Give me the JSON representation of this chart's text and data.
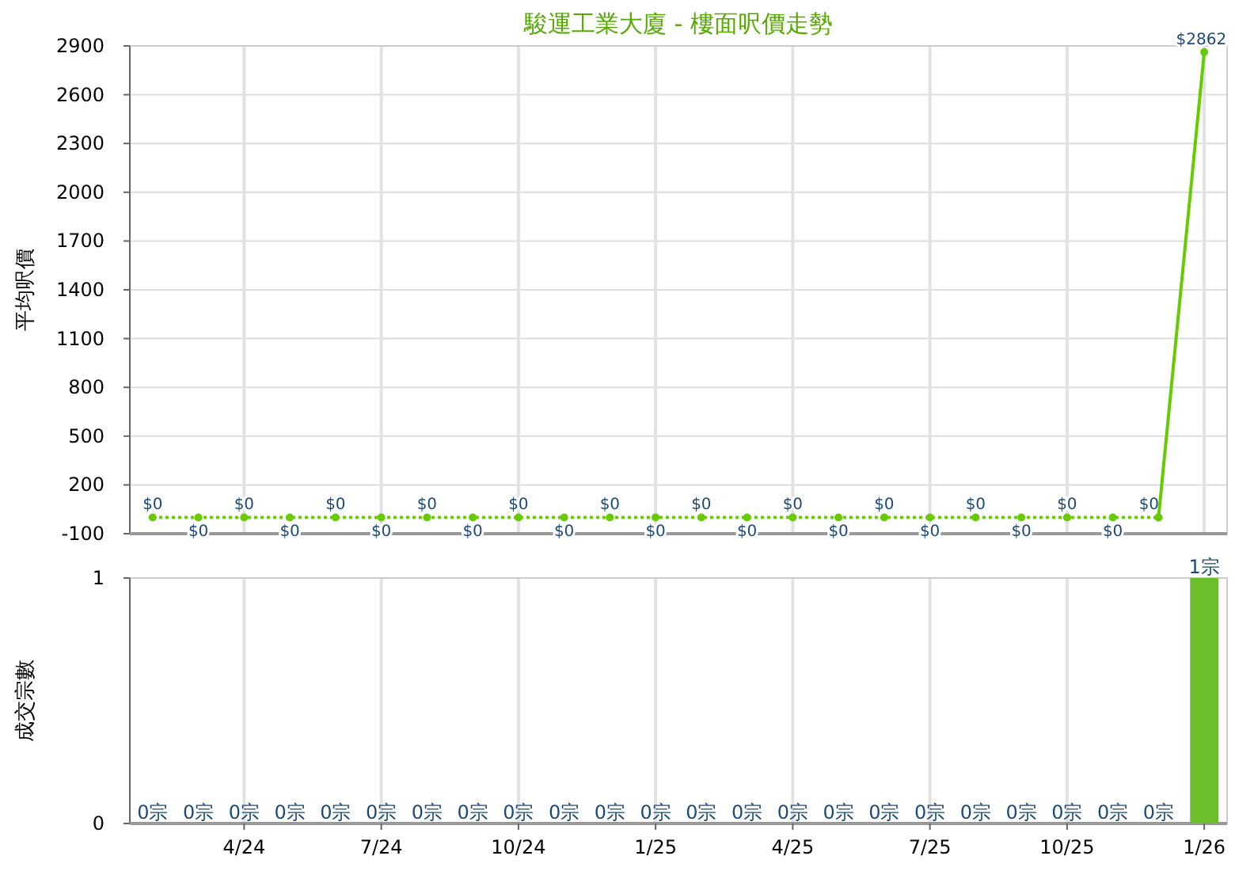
{
  "chart_data": [
    {
      "type": "line",
      "title": "駿運工業大廈 - 樓面呎價走勢",
      "ylabel": "平均呎價",
      "categories": [
        null,
        null,
        null,
        null,
        null,
        null,
        null,
        null,
        null,
        null,
        null,
        null,
        null,
        null,
        null,
        null,
        null,
        null,
        null,
        null,
        null,
        null,
        null,
        null
      ],
      "series": [
        {
          "color": "#66cc00",
          "line_style": "dotted",
          "marker": "circle",
          "values": [
            0,
            0,
            0,
            0,
            0,
            0,
            0,
            0,
            0,
            0,
            0,
            0,
            0,
            0,
            0,
            0,
            0,
            0,
            0,
            0,
            0,
            0,
            0,
            null
          ],
          "value_labels": [
            "$0",
            "$0",
            "$0",
            "$0",
            "$0",
            "$0",
            "$0",
            "$0",
            "$0",
            "$0",
            "$0",
            "$0",
            "$0",
            "$0",
            "$0",
            "$0",
            "$0",
            "$0",
            "$0",
            "$0",
            "$0",
            "$0",
            "$0",
            null
          ]
        },
        {
          "color": "#66cc00",
          "line_style": "solid",
          "marker": "circle",
          "values": [
            null,
            null,
            null,
            null,
            null,
            null,
            null,
            null,
            null,
            null,
            null,
            null,
            null,
            null,
            null,
            null,
            null,
            null,
            null,
            null,
            null,
            null,
            0,
            2862
          ],
          "value_labels": [
            null,
            null,
            null,
            null,
            null,
            null,
            null,
            null,
            null,
            null,
            null,
            null,
            null,
            null,
            null,
            null,
            null,
            null,
            null,
            null,
            null,
            null,
            null,
            "$2862"
          ]
        }
      ],
      "ylim": [
        -100,
        2900
      ],
      "yticks": [
        -100,
        200,
        500,
        800,
        1100,
        1400,
        1700,
        2000,
        2300,
        2600,
        2900
      ],
      "grid": true,
      "tick_labels": "y"
    },
    {
      "type": "bar",
      "ylabel": "成交宗數",
      "categories": [
        null,
        null,
        "4/24",
        null,
        null,
        "7/24",
        null,
        null,
        "10/24",
        null,
        null,
        "1/25",
        null,
        null,
        "4/25",
        null,
        null,
        "7/25",
        null,
        null,
        "10/25",
        null,
        null,
        "1/26"
      ],
      "values": [
        0,
        0,
        0,
        0,
        0,
        0,
        0,
        0,
        0,
        0,
        0,
        0,
        0,
        0,
        0,
        0,
        0,
        0,
        0,
        0,
        0,
        0,
        0,
        1
      ],
      "color": "#6cbf2a",
      "value_labels": [
        "0宗",
        "0宗",
        "0宗",
        "0宗",
        "0宗",
        "0宗",
        "0宗",
        "0宗",
        "0宗",
        "0宗",
        "0宗",
        "0宗",
        "0宗",
        "0宗",
        "0宗",
        "0宗",
        "0宗",
        "0宗",
        "0宗",
        "0宗",
        "0宗",
        "0宗",
        "0宗",
        "1宗"
      ],
      "ylim": [
        0,
        1
      ],
      "yticks": [
        0,
        1
      ],
      "grid": true
    }
  ]
}
